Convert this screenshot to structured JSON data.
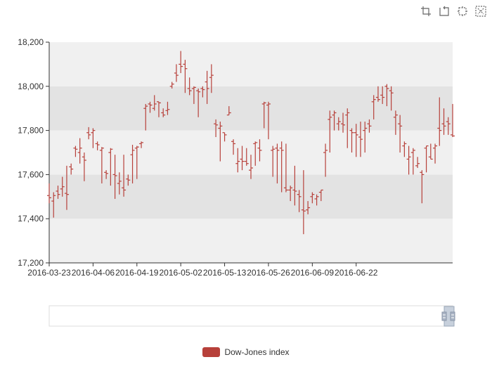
{
  "toolbox": {
    "icons": [
      "zoom-icon",
      "zoom-reset-icon",
      "restore-icon",
      "clear-icon"
    ]
  },
  "legend": {
    "label": "Dow-Jones index",
    "color": "#b7403a"
  },
  "colors": {
    "bar": "#b7403a",
    "band_dark": "#e3e3e3",
    "band_light": "#f0f0f0",
    "axis": "#333333"
  },
  "chart_data": {
    "type": "ohlc",
    "title": "",
    "xlabel": "",
    "ylabel": "",
    "ylim": [
      17200,
      18200
    ],
    "yticks": [
      17200,
      17400,
      17600,
      17800,
      18000,
      18200
    ],
    "ytick_labels": [
      "17,200",
      "17,400",
      "17,600",
      "17,800",
      "18,000",
      "18,200"
    ],
    "xtick_labels": [
      "2016-03-23",
      "2016-04-06",
      "2016-04-19",
      "2016-05-02",
      "2016-05-13",
      "2016-05-26",
      "2016-06-09",
      "2016-06-22"
    ],
    "xtick_index": [
      0,
      10,
      20,
      30,
      40,
      50,
      60,
      70
    ],
    "series": [
      {
        "name": "Dow-Jones index",
        "ohlc": [
          [
            17505,
            17495,
            17560,
            17470
          ],
          [
            17480,
            17505,
            17520,
            17405
          ],
          [
            17525,
            17510,
            17550,
            17490
          ],
          [
            17535,
            17545,
            17590,
            17500
          ],
          [
            17515,
            17510,
            17640,
            17440
          ],
          [
            17635,
            17625,
            17650,
            17600
          ],
          [
            17720,
            17715,
            17730,
            17680
          ],
          [
            17700,
            17720,
            17765,
            17650
          ],
          [
            17680,
            17665,
            17700,
            17570
          ],
          [
            17790,
            17780,
            17815,
            17760
          ],
          [
            17790,
            17800,
            17810,
            17720
          ],
          [
            17740,
            17735,
            17750,
            17710
          ],
          [
            17710,
            17720,
            17725,
            17560
          ],
          [
            17610,
            17605,
            17620,
            17580
          ],
          [
            17700,
            17715,
            17720,
            17550
          ],
          [
            17600,
            17595,
            17690,
            17490
          ],
          [
            17560,
            17570,
            17610,
            17510
          ],
          [
            17540,
            17530,
            17690,
            17500
          ],
          [
            17580,
            17575,
            17600,
            17550
          ],
          [
            17690,
            17710,
            17735,
            17560
          ],
          [
            17720,
            17725,
            17730,
            17580
          ],
          [
            17740,
            17745,
            17750,
            17720
          ],
          [
            17900,
            17910,
            17920,
            17800
          ],
          [
            17920,
            17915,
            17930,
            17880
          ],
          [
            17900,
            17920,
            17960,
            17890
          ],
          [
            17930,
            17925,
            17930,
            17860
          ],
          [
            17880,
            17870,
            17900,
            17860
          ],
          [
            17890,
            17895,
            17930,
            17870
          ],
          [
            18000,
            18010,
            18020,
            17990
          ],
          [
            18060,
            18050,
            18100,
            18020
          ],
          [
            18100,
            18090,
            18160,
            18060
          ],
          [
            18100,
            18080,
            18120,
            17970
          ],
          [
            17990,
            17980,
            18040,
            17960
          ],
          [
            17990,
            17995,
            18000,
            17920
          ],
          [
            17980,
            17975,
            17990,
            17860
          ],
          [
            17990,
            17985,
            18000,
            17950
          ],
          [
            18020,
            17990,
            18070,
            17920
          ],
          [
            18040,
            18050,
            18100,
            17970
          ],
          [
            17830,
            17825,
            17850,
            17770
          ],
          [
            17810,
            17820,
            17840,
            17660
          ],
          [
            17790,
            17780,
            17790,
            17750
          ],
          [
            17870,
            17880,
            17910,
            17870
          ],
          [
            17750,
            17740,
            17760,
            17690
          ],
          [
            17650,
            17660,
            17720,
            17610
          ],
          [
            17670,
            17660,
            17730,
            17620
          ],
          [
            17660,
            17650,
            17720,
            17640
          ],
          [
            17620,
            17630,
            17690,
            17580
          ],
          [
            17740,
            17745,
            17750,
            17640
          ],
          [
            17720,
            17710,
            17760,
            17660
          ],
          [
            17920,
            17925,
            17930,
            17810
          ],
          [
            17915,
            17920,
            17930,
            17760
          ],
          [
            17710,
            17715,
            17730,
            17590
          ],
          [
            17720,
            17710,
            17740,
            17560
          ],
          [
            17720,
            17710,
            17750,
            17520
          ],
          [
            17540,
            17530,
            17740,
            17520
          ],
          [
            17530,
            17540,
            17550,
            17480
          ],
          [
            17530,
            17525,
            17640,
            17460
          ],
          [
            17510,
            17500,
            17530,
            17430
          ],
          [
            17440,
            17435,
            17620,
            17330
          ],
          [
            17440,
            17450,
            17480,
            17420
          ],
          [
            17500,
            17510,
            17520,
            17470
          ],
          [
            17490,
            17500,
            17510,
            17460
          ],
          [
            17520,
            17530,
            17530,
            17480
          ],
          [
            17700,
            17710,
            17740,
            17590
          ],
          [
            17850,
            17860,
            17890,
            17700
          ],
          [
            17870,
            17880,
            17890,
            17800
          ],
          [
            17830,
            17840,
            17860,
            17800
          ],
          [
            17830,
            17825,
            17880,
            17790
          ],
          [
            17870,
            17880,
            17900,
            17720
          ],
          [
            17800,
            17790,
            17810,
            17700
          ],
          [
            17790,
            17780,
            17830,
            17680
          ],
          [
            17770,
            17760,
            17840,
            17680
          ],
          [
            17800,
            17810,
            17840,
            17700
          ],
          [
            17830,
            17820,
            17850,
            17790
          ],
          [
            17930,
            17940,
            17960,
            17850
          ],
          [
            17950,
            17940,
            18000,
            17930
          ],
          [
            17960,
            17950,
            18000,
            17920
          ],
          [
            18000,
            17990,
            18010,
            17910
          ],
          [
            17980,
            17970,
            18000,
            17890
          ],
          [
            17860,
            17870,
            17890,
            17780
          ],
          [
            17830,
            17820,
            17870,
            17700
          ],
          [
            17730,
            17740,
            17750,
            17680
          ],
          [
            17670,
            17680,
            17730,
            17600
          ],
          [
            17700,
            17710,
            17720,
            17600
          ],
          [
            17640,
            17650,
            17680,
            17630
          ],
          [
            17610,
            17600,
            17620,
            17470
          ],
          [
            17720,
            17730,
            17730,
            17610
          ],
          [
            17680,
            17670,
            17740,
            17670
          ],
          [
            17720,
            17730,
            17740,
            17650
          ],
          [
            17810,
            17800,
            17950,
            17730
          ],
          [
            17830,
            17820,
            17900,
            17780
          ],
          [
            17840,
            17830,
            17860,
            17780
          ],
          [
            17780,
            17775,
            17920,
            17770
          ]
        ]
      }
    ]
  }
}
